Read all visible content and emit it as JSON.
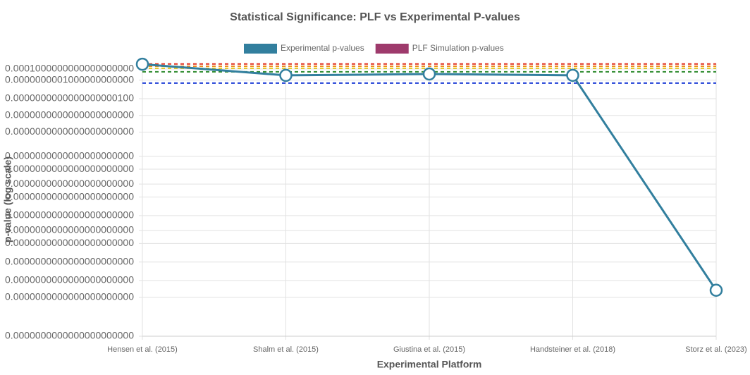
{
  "chart_data": {
    "type": "line",
    "title": "Statistical Significance: PLF vs Experimental P-values",
    "x_label": "Experimental Platform",
    "y_label": "p-value (log scale)",
    "log_scale": true,
    "grid": true,
    "legend": "top",
    "categories": [
      "Hensen et al. (2015)",
      "Shalm et al. (2015)",
      "Giustina et al. (2015)",
      "Handsteiner et al. (2018)",
      "Storz et al. (2023)"
    ],
    "series": [
      {
        "name": "Experimental p-values",
        "color": "#327f9e",
        "values": [
          0.039,
          3.7e-08,
          2e-07,
          4e-08,
          6e-124
        ]
      },
      {
        "name": "PLF Simulation p-values",
        "color": "#9e3a6c",
        "values": [
          null,
          null,
          null,
          null,
          null
        ]
      }
    ],
    "reference_lines": [
      {
        "value": 0.05,
        "color": "#e0301e"
      },
      {
        "value": 0.003,
        "color": "#f08c1e"
      },
      {
        "value": 0.00025,
        "color": "#e6c619"
      },
      {
        "value": 3e-06,
        "color": "#2e8b2e"
      },
      {
        "value": 2.5e-12,
        "color": "#1f3fd6"
      }
    ],
    "ylim": [
      1e-148,
      0.1
    ],
    "yticks": [
      {
        "value": 0.0001,
        "label": "0.0001000000000000000000"
      },
      {
        "value": 1e-10,
        "label": "0.0000000001000000000000"
      },
      {
        "value": 1e-20,
        "label": "0.0000000000000000000100"
      },
      {
        "value": 1e-29,
        "label": "0.0000000000000000000000"
      },
      {
        "value": 1e-38,
        "label": "0.0000000000000000000000"
      },
      {
        "value": 1e-51,
        "label": "0.0000000000000000000000"
      },
      {
        "value": 1e-58,
        "label": "0.0000000000000000000000"
      },
      {
        "value": 1e-66,
        "label": "0.0000000000000000000000"
      },
      {
        "value": 1e-73,
        "label": "0.0000000000000000000000"
      },
      {
        "value": 1e-83,
        "label": "0.0000000000000000000000"
      },
      {
        "value": 1e-91,
        "label": "0.0000000000000000000000"
      },
      {
        "value": 1e-98,
        "label": "0.0000000000000000000000"
      },
      {
        "value": 1e-108,
        "label": "0.0000000000000000000000"
      },
      {
        "value": 1e-118,
        "label": "0.0000000000000000000000"
      },
      {
        "value": 1e-127,
        "label": "0.0000000000000000000000"
      },
      {
        "value": 1e-148,
        "label": "0.0000000000000000000000"
      }
    ]
  }
}
